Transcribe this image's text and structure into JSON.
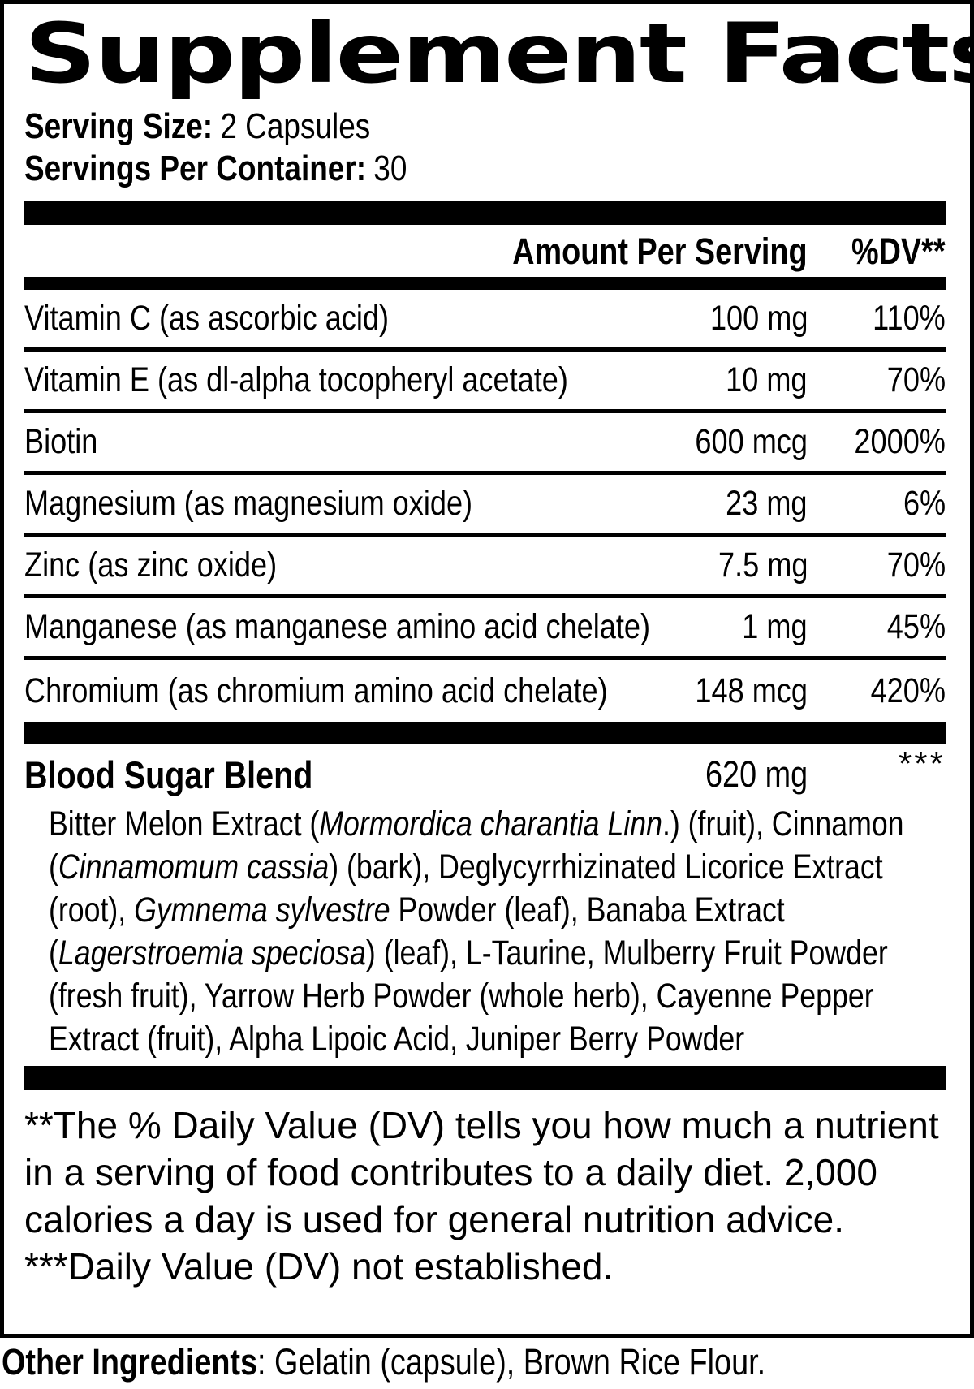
{
  "title": "Supplement Facts",
  "serving": {
    "size_label": "Serving Size:",
    "size_value": "2 Capsules",
    "per_container_label": "Servings Per Container:",
    "per_container_value": "30"
  },
  "table": {
    "amount_header": "Amount Per Serving",
    "dv_header": "%DV**",
    "rows": [
      {
        "name": "Vitamin C (as ascorbic acid)",
        "amount": "100 mg",
        "dv": "110%"
      },
      {
        "name": "Vitamin E (as dl-alpha tocopheryl acetate)",
        "amount": "10 mg",
        "dv": "70%"
      },
      {
        "name": "Biotin",
        "amount": "600 mcg",
        "dv": "2000%"
      },
      {
        "name": "Magnesium (as magnesium oxide)",
        "amount": "23 mg",
        "dv": "6%"
      },
      {
        "name": "Zinc (as zinc oxide)",
        "amount": "7.5 mg",
        "dv": "70%"
      },
      {
        "name": "Manganese (as manganese amino acid chelate)",
        "amount": "1 mg",
        "dv": "45%"
      },
      {
        "name": "Chromium (as chromium amino acid chelate)",
        "amount": "148 mcg",
        "dv": "420%"
      }
    ]
  },
  "blend": {
    "name": "Blood Sugar Blend",
    "amount": "620 mg",
    "dv": "***",
    "ingredients_rich": [
      {
        "text": "Bitter Melon Extract ("
      },
      {
        "text": "Mormordica charantia Linn",
        "italic": true
      },
      {
        "text": ".) (fruit), Cinnamon ("
      },
      {
        "text": "Cinnamomum cassia",
        "italic": true
      },
      {
        "text": ") (bark), Deglycyrrhizinated Licorice Extract (root), "
      },
      {
        "text": "Gymnema sylvestre",
        "italic": true
      },
      {
        "text": " Powder (leaf), Banaba Extract ("
      },
      {
        "text": "Lagerstroemia speciosa",
        "italic": true
      },
      {
        "text": ") (leaf), L-Taurine, Mulberry Fruit Powder (fresh fruit), Yarrow Herb Powder (whole herb), Cayenne Pepper Extract (fruit), Alpha Lipoic Acid, Juniper Berry Powder"
      }
    ]
  },
  "footnotes": {
    "dv_note": "**The % Daily Value (DV) tells you how much a nutrient in a serving of food contributes to a daily diet. 2,000 calories a day is used for general nutrition advice.",
    "not_established_note": "***Daily Value (DV) not established."
  },
  "other_ingredients": {
    "label": "Other Ingredients",
    "value": ": Gelatin (capsule), Brown Rice Flour."
  },
  "colors": {
    "text": "#000000",
    "background": "#ffffff"
  }
}
